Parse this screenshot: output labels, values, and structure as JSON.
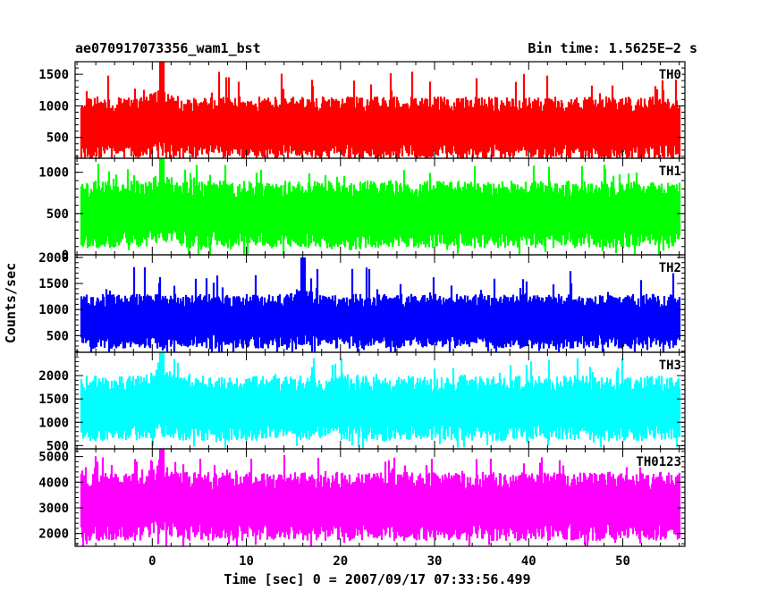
{
  "header": {
    "title": "ae070917073356_wam1_bst",
    "bin_time": "Bin time: 1.5625E−2 s"
  },
  "chart_data": {
    "type": "line",
    "xlabel": "Time [sec] 0 = 2007/09/17 07:33:56.499",
    "ylabel": "Counts/sec",
    "xlim": [
      -8.2,
      56.6
    ],
    "data_x_range": [
      -7.5,
      56
    ],
    "x_ticks": [
      0,
      10,
      20,
      30,
      40,
      50
    ],
    "x_tick_labels": [
      "0",
      "10",
      "20",
      "30",
      "40",
      "50"
    ],
    "grid": false,
    "panels": [
      {
        "name": "TH0",
        "color": "#ff0000",
        "ylim": [
          170,
          1700
        ],
        "y_ticks": [
          500,
          1000,
          1500
        ],
        "y_tick_labels": [
          "500",
          "1000",
          "1500"
        ],
        "typical_low": 150,
        "typical_high": 1150,
        "spike_max": 1700,
        "peak_near_x": 1
      },
      {
        "name": "TH1",
        "color": "#00ff00",
        "ylim": [
          0,
          1170
        ],
        "y_ticks": [
          0,
          500,
          1000
        ],
        "y_tick_labels": [
          "0",
          "500",
          "1000"
        ],
        "typical_low": 80,
        "typical_high": 900,
        "spike_max": 1170,
        "peak_near_x": 1
      },
      {
        "name": "TH2",
        "color": "#0000ff",
        "ylim": [
          180,
          2050
        ],
        "y_ticks": [
          500,
          1000,
          1500,
          2000
        ],
        "y_tick_labels": [
          "500",
          "1000",
          "1500",
          "2000"
        ],
        "typical_low": 250,
        "typical_high": 1300,
        "spike_max": 2000,
        "peak_near_x": 16
      },
      {
        "name": "TH3",
        "color": "#00ffff",
        "ylim": [
          430,
          2500
        ],
        "y_ticks": [
          500,
          1000,
          1500,
          2000
        ],
        "y_tick_labels": [
          "500",
          "1000",
          "1500",
          "2000"
        ],
        "typical_low": 600,
        "typical_high": 2000,
        "spike_max": 2500,
        "peak_near_x": 1
      },
      {
        "name": "TH0123",
        "color": "#ff00ff",
        "ylim": [
          1500,
          5300
        ],
        "y_ticks": [
          2000,
          3000,
          4000,
          5000
        ],
        "y_tick_labels": [
          "2000",
          "3000",
          "4000",
          "5000"
        ],
        "typical_low": 1700,
        "typical_high": 4400,
        "spike_max": 5300,
        "peak_near_x": 1
      }
    ]
  }
}
